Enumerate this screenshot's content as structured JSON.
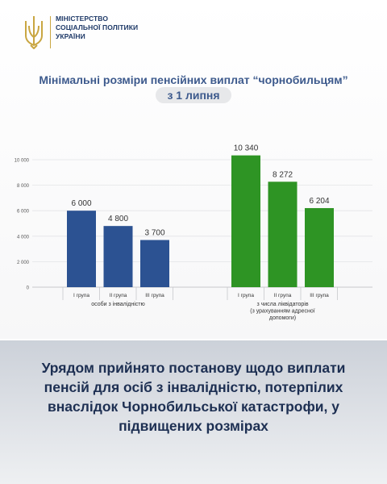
{
  "header": {
    "org_line1": "МІНІСТЕРСТВО",
    "org_line2": "СОЦІАЛЬНОЇ ПОЛІТИКИ",
    "org_line3": "УКРАЇНИ"
  },
  "title": "Мінімальні розміри пенсійних виплат “чорнобильцям”",
  "subtitle": "з 1 липня",
  "chart_data": {
    "type": "bar",
    "ylim": [
      0,
      10000
    ],
    "yticks": [
      0,
      2000,
      4000,
      6000,
      8000,
      10000
    ],
    "ytick_labels": [
      "0",
      "2 000",
      "4 000",
      "6 000",
      "8 000",
      "10 000"
    ],
    "groups": [
      {
        "name": "особи з інвалідністю",
        "color": "#2c5292",
        "categories": [
          "I група",
          "II група",
          "III група"
        ],
        "values": [
          6000,
          4800,
          3700
        ],
        "labels": [
          "6 000",
          "4 800",
          "3 700"
        ]
      },
      {
        "name_lines": [
          "з числа ліквідаторів",
          "(з урахуванням адресної",
          "допомоги)"
        ],
        "color": "#2e9424",
        "categories": [
          "I група",
          "II група",
          "III група"
        ],
        "values": [
          10340,
          8272,
          6204
        ],
        "labels": [
          "10 340",
          "8 272",
          "6 204"
        ]
      }
    ]
  },
  "message": "Урядом прийнято постанову щодо виплати пенсій для осіб з інвалідністю, потерпілих внаслідок Чорнобильської катастрофи, у підвищених розмірах"
}
